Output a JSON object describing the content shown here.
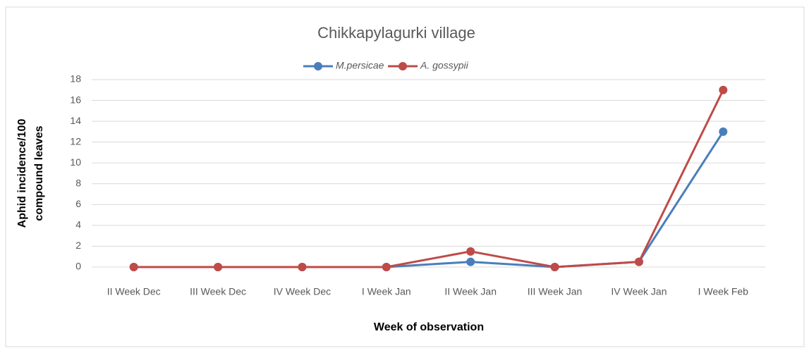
{
  "chart_data": {
    "type": "line",
    "title": "Chikkapylagurki village",
    "xlabel": "Week of observation",
    "ylabel_lines": [
      "Aphid incidence/100",
      "compound leaves"
    ],
    "categories": [
      "II Week Dec",
      "III Week Dec",
      "IV Week Dec",
      "I Week Jan",
      "II Week Jan",
      "III Week Jan",
      "IV Week Jan",
      "I Week Feb"
    ],
    "series": [
      {
        "name": "M.persicae",
        "color": "#4a7ebb",
        "values": [
          0,
          0,
          0,
          0,
          0.5,
          0,
          0.5,
          13
        ]
      },
      {
        "name": "A. gossypii",
        "color": "#be4b48",
        "values": [
          0,
          0,
          0,
          0,
          1.5,
          0,
          0.5,
          17
        ]
      }
    ],
    "ylim": [
      0,
      18
    ],
    "yticks": [
      0,
      2,
      4,
      6,
      8,
      10,
      12,
      14,
      16,
      18
    ],
    "grid": true,
    "legend": "top"
  }
}
